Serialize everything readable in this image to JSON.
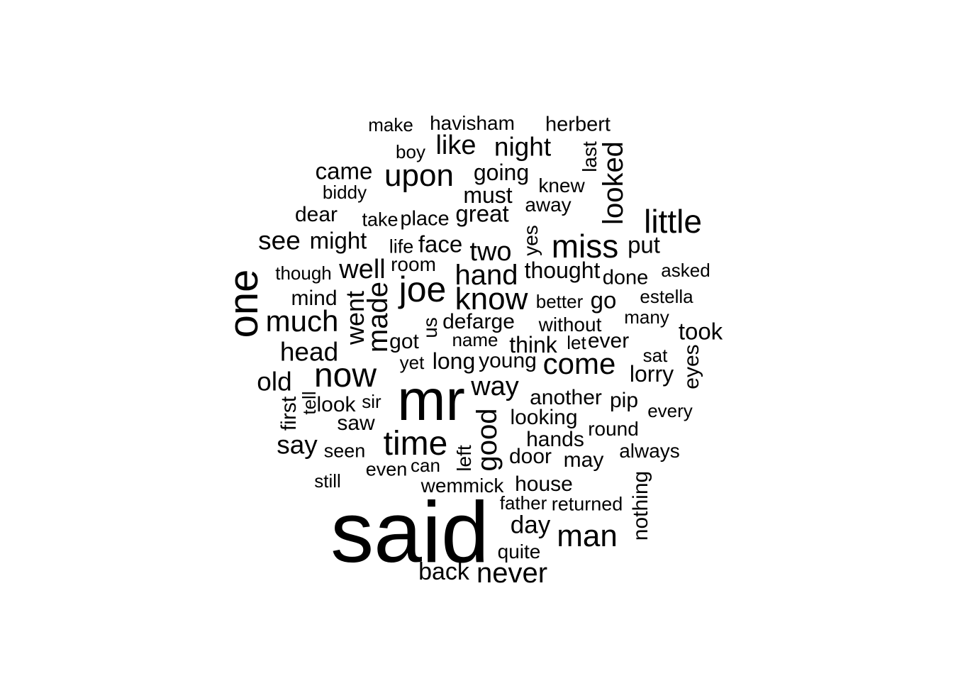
{
  "wordcloud": {
    "text_color": "#000000",
    "background_color": "#ffffff",
    "words": [
      {
        "text": "said",
        "weight": 100,
        "vertical": false
      },
      {
        "text": "mr",
        "weight": 68,
        "vertical": false
      },
      {
        "text": "one",
        "weight": 49,
        "vertical": true
      },
      {
        "text": "joe",
        "weight": 42,
        "vertical": false
      },
      {
        "text": "now",
        "weight": 40,
        "vertical": false
      },
      {
        "text": "time",
        "weight": 40,
        "vertical": false
      },
      {
        "text": "little",
        "weight": 38,
        "vertical": false
      },
      {
        "text": "miss",
        "weight": 38,
        "vertical": false
      },
      {
        "text": "know",
        "weight": 37,
        "vertical": false
      },
      {
        "text": "upon",
        "weight": 37,
        "vertical": false
      },
      {
        "text": "man",
        "weight": 37,
        "vertical": false
      },
      {
        "text": "much",
        "weight": 36,
        "vertical": false
      },
      {
        "text": "come",
        "weight": 36,
        "vertical": false
      },
      {
        "text": "hand",
        "weight": 34,
        "vertical": false
      },
      {
        "text": "made",
        "weight": 34,
        "vertical": true
      },
      {
        "text": "looked",
        "weight": 34,
        "vertical": true
      },
      {
        "text": "good",
        "weight": 34,
        "vertical": true
      },
      {
        "text": "never",
        "weight": 34,
        "vertical": false
      },
      {
        "text": "well",
        "weight": 32,
        "vertical": false
      },
      {
        "text": "way",
        "weight": 32,
        "vertical": false
      },
      {
        "text": "two",
        "weight": 32,
        "vertical": false
      },
      {
        "text": "like",
        "weight": 32,
        "vertical": false
      },
      {
        "text": "head",
        "weight": 31,
        "vertical": false
      },
      {
        "text": "old",
        "weight": 31,
        "vertical": false
      },
      {
        "text": "see",
        "weight": 31,
        "vertical": false
      },
      {
        "text": "say",
        "weight": 31,
        "vertical": false
      },
      {
        "text": "night",
        "weight": 31,
        "vertical": false
      },
      {
        "text": "went",
        "weight": 30,
        "vertical": true
      },
      {
        "text": "day",
        "weight": 30,
        "vertical": false
      },
      {
        "text": "back",
        "weight": 29,
        "vertical": false
      },
      {
        "text": "came",
        "weight": 28,
        "vertical": false
      },
      {
        "text": "might",
        "weight": 28,
        "vertical": false
      },
      {
        "text": "face",
        "weight": 28,
        "vertical": false
      },
      {
        "text": "great",
        "weight": 28,
        "vertical": false
      },
      {
        "text": "put",
        "weight": 28,
        "vertical": false
      },
      {
        "text": "took",
        "weight": 28,
        "vertical": false
      },
      {
        "text": "go",
        "weight": 28,
        "vertical": false
      },
      {
        "text": "long",
        "weight": 28,
        "vertical": false
      },
      {
        "text": "think",
        "weight": 27,
        "vertical": false
      },
      {
        "text": "thought",
        "weight": 27,
        "vertical": false
      },
      {
        "text": "going",
        "weight": 27,
        "vertical": false
      },
      {
        "text": "must",
        "weight": 27,
        "vertical": false
      },
      {
        "text": "lorry",
        "weight": 27,
        "vertical": false
      },
      {
        "text": "defarge",
        "weight": 26,
        "vertical": false
      },
      {
        "text": "looking",
        "weight": 26,
        "vertical": false
      },
      {
        "text": "nothing",
        "weight": 26,
        "vertical": true
      },
      {
        "text": "dear",
        "weight": 26,
        "vertical": false
      },
      {
        "text": "mind",
        "weight": 26,
        "vertical": false
      },
      {
        "text": "another",
        "weight": 26,
        "vertical": false
      },
      {
        "text": "pip",
        "weight": 26,
        "vertical": false
      },
      {
        "text": "young",
        "weight": 26,
        "vertical": false
      },
      {
        "text": "house",
        "weight": 26,
        "vertical": false
      },
      {
        "text": "saw",
        "weight": 26,
        "vertical": false
      },
      {
        "text": "look",
        "weight": 26,
        "vertical": false
      },
      {
        "text": "got",
        "weight": 26,
        "vertical": false
      },
      {
        "text": "hands",
        "weight": 26,
        "vertical": false
      },
      {
        "text": "door",
        "weight": 26,
        "vertical": false
      },
      {
        "text": "may",
        "weight": 26,
        "vertical": false
      },
      {
        "text": "first",
        "weight": 26,
        "vertical": true
      },
      {
        "text": "eyes",
        "weight": 26,
        "vertical": true
      },
      {
        "text": "ever",
        "weight": 26,
        "vertical": false
      },
      {
        "text": "place",
        "weight": 25,
        "vertical": false
      },
      {
        "text": "done",
        "weight": 25,
        "vertical": false
      },
      {
        "text": "herbert",
        "weight": 25,
        "vertical": false
      },
      {
        "text": "havisham",
        "weight": 24,
        "vertical": false
      },
      {
        "text": "room",
        "weight": 24,
        "vertical": false
      },
      {
        "text": "left",
        "weight": 24,
        "vertical": true
      },
      {
        "text": "last",
        "weight": 24,
        "vertical": true
      },
      {
        "text": "us",
        "weight": 24,
        "vertical": true
      },
      {
        "text": "yes",
        "weight": 24,
        "vertical": true
      },
      {
        "text": "without",
        "weight": 24,
        "vertical": false
      },
      {
        "text": "knew",
        "weight": 24,
        "vertical": false
      },
      {
        "text": "away",
        "weight": 24,
        "vertical": false
      },
      {
        "text": "round",
        "weight": 24,
        "vertical": false
      },
      {
        "text": "always",
        "weight": 24,
        "vertical": false
      },
      {
        "text": "quite",
        "weight": 24,
        "vertical": false
      },
      {
        "text": "wemmick",
        "weight": 24,
        "vertical": false
      },
      {
        "text": "returned",
        "weight": 24,
        "vertical": false
      },
      {
        "text": "life",
        "weight": 24,
        "vertical": false
      },
      {
        "text": "take",
        "weight": 24,
        "vertical": false
      },
      {
        "text": "even",
        "weight": 24,
        "vertical": false
      },
      {
        "text": "seen",
        "weight": 24,
        "vertical": false
      },
      {
        "text": "asked",
        "weight": 23,
        "vertical": false
      },
      {
        "text": "estella",
        "weight": 23,
        "vertical": false
      },
      {
        "text": "better",
        "weight": 23,
        "vertical": false
      },
      {
        "text": "make",
        "weight": 23,
        "vertical": false
      },
      {
        "text": "boy",
        "weight": 23,
        "vertical": false
      },
      {
        "text": "biddy",
        "weight": 23,
        "vertical": false
      },
      {
        "text": "though",
        "weight": 23,
        "vertical": false
      },
      {
        "text": "many",
        "weight": 23,
        "vertical": false
      },
      {
        "text": "let",
        "weight": 23,
        "vertical": false
      },
      {
        "text": "name",
        "weight": 23,
        "vertical": false
      },
      {
        "text": "yet",
        "weight": 23,
        "vertical": false
      },
      {
        "text": "sir",
        "weight": 23,
        "vertical": false
      },
      {
        "text": "tell",
        "weight": 23,
        "vertical": true
      },
      {
        "text": "sat",
        "weight": 23,
        "vertical": false
      },
      {
        "text": "every",
        "weight": 23,
        "vertical": false
      },
      {
        "text": "can",
        "weight": 23,
        "vertical": false
      },
      {
        "text": "still",
        "weight": 23,
        "vertical": false
      },
      {
        "text": "father",
        "weight": 23,
        "vertical": false
      }
    ]
  }
}
